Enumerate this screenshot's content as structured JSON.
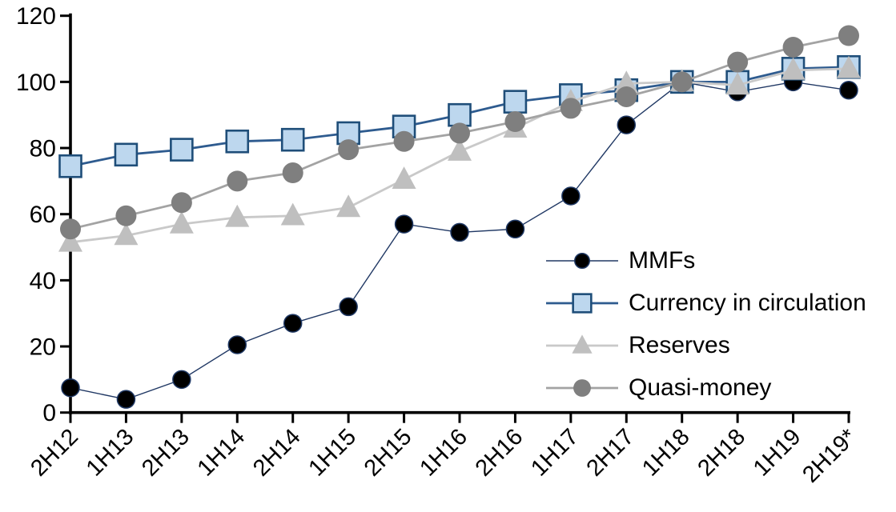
{
  "chart_data": {
    "type": "line",
    "title": "",
    "xlabel": "",
    "ylabel": "",
    "categories": [
      "2H12",
      "1H13",
      "2H13",
      "1H14",
      "2H14",
      "1H15",
      "2H15",
      "1H16",
      "2H16",
      "1H17",
      "2H17",
      "1H18",
      "2H18",
      "1H19",
      "2H19*"
    ],
    "series": [
      {
        "name": "MMFs",
        "marker": "circle",
        "marker_fill": "#000000",
        "marker_stroke": "#1F3864",
        "marker_size": 22,
        "line_color": "#203864",
        "line_width": 1.4,
        "values": [
          7.5,
          4,
          10,
          20.5,
          27,
          32,
          57,
          54.5,
          55.5,
          65.5,
          87,
          100,
          97,
          100,
          97.5
        ]
      },
      {
        "name": "Currency in circulation",
        "marker": "square",
        "marker_fill": "#BDD7EE",
        "marker_stroke": "#1F4E79",
        "marker_size": 27,
        "line_color": "#2E5B8F",
        "line_width": 2.8,
        "values": [
          74.5,
          78,
          79.5,
          82,
          82.5,
          84.5,
          86.5,
          90,
          94,
          96,
          97.5,
          100,
          100,
          104,
          104.5
        ]
      },
      {
        "name": "Reserves",
        "marker": "triangle",
        "marker_fill": "#BFBFBF",
        "marker_stroke": "none",
        "marker_size": 30,
        "line_color": "#C9C9C9",
        "line_width": 2.8,
        "values": [
          51.5,
          53.5,
          57,
          59,
          59.5,
          62,
          70.5,
          79,
          86,
          94,
          99.5,
          100,
          99,
          103.5,
          104
        ]
      },
      {
        "name": "Quasi-money",
        "marker": "circle",
        "marker_fill": "#7F7F7F",
        "marker_stroke": "none",
        "marker_size": 26,
        "line_color": "#A3A3A3",
        "line_width": 2.8,
        "values": [
          55.5,
          59.5,
          63.5,
          70,
          72.5,
          79.5,
          82,
          84.5,
          88,
          92,
          95.5,
          100,
          106,
          110.5,
          114
        ]
      }
    ],
    "ylim": [
      0,
      120
    ],
    "yticks": [
      0,
      20,
      40,
      60,
      80,
      100,
      120
    ],
    "grid": false,
    "legend_position": "inside-right",
    "axis_color": "#000000"
  }
}
